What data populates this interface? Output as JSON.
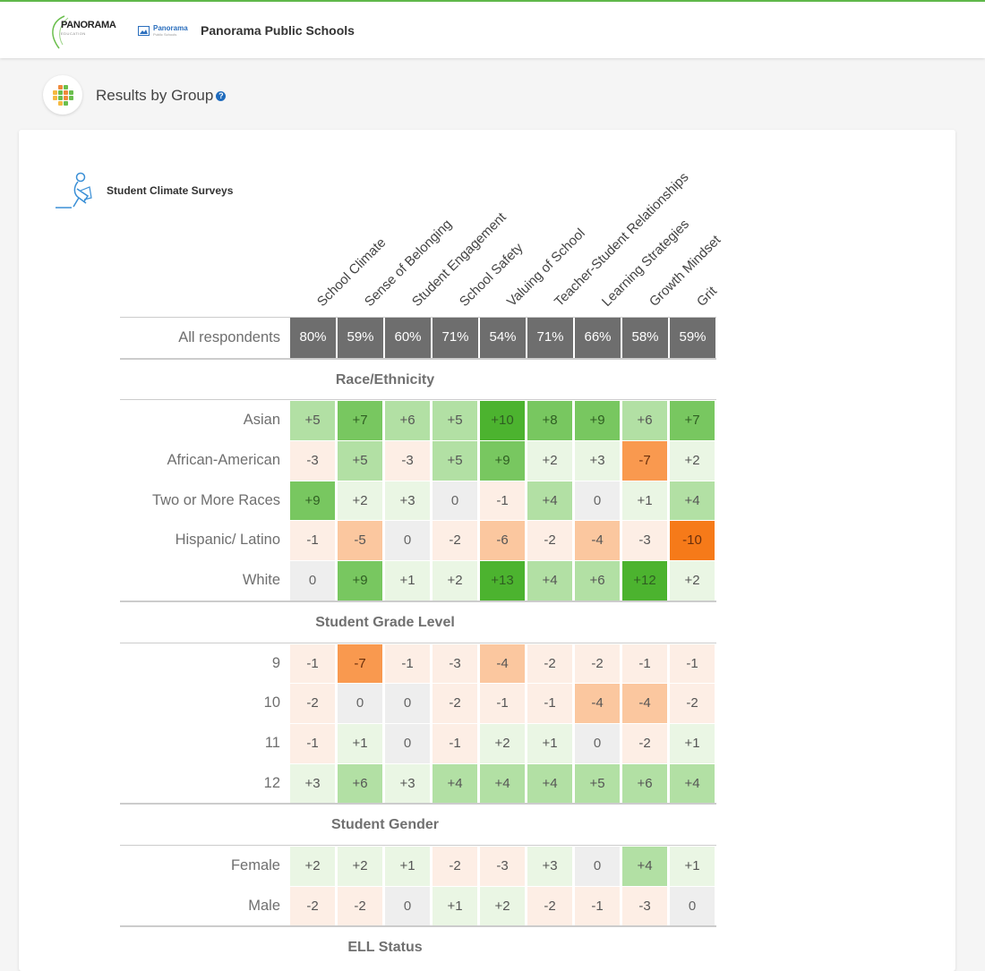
{
  "header": {
    "logo_text": "PANORAMA",
    "logo_subtext": "EDUCATION",
    "district_logo_line1": "Panorama",
    "district_logo_line2": "Public Schools",
    "district_name": "Panorama Public Schools"
  },
  "page": {
    "title": "Results by Group",
    "help_glyph": "?"
  },
  "survey": {
    "name": "Student Climate Surveys"
  },
  "columns": [
    "School Climate",
    "Sense of Belonging",
    "Student Engagement",
    "School Safety",
    "Valuing of School",
    "Teacher-Student Relationships",
    "Learning Strategies",
    "Growth Mindset",
    "Grit"
  ],
  "overall": {
    "label": "All respondents",
    "values": [
      "80%",
      "59%",
      "60%",
      "71%",
      "54%",
      "71%",
      "66%",
      "58%",
      "59%"
    ]
  },
  "groups": [
    {
      "name": "Race/Ethnicity",
      "rows": [
        {
          "label": "Asian",
          "values": [
            5,
            7,
            6,
            5,
            10,
            8,
            9,
            6,
            7
          ]
        },
        {
          "label": "African-American",
          "values": [
            -3,
            5,
            -3,
            5,
            9,
            2,
            3,
            -7,
            2
          ]
        },
        {
          "label": "Two or More Races",
          "values": [
            9,
            2,
            3,
            0,
            -1,
            4,
            0,
            1,
            4
          ]
        },
        {
          "label": "Hispanic/ Latino",
          "values": [
            -1,
            -5,
            0,
            -2,
            -6,
            -2,
            -4,
            -3,
            -10
          ]
        },
        {
          "label": "White",
          "values": [
            0,
            9,
            1,
            2,
            13,
            4,
            6,
            12,
            2
          ]
        }
      ]
    },
    {
      "name": "Student Grade Level",
      "rows": [
        {
          "label": "9",
          "values": [
            -1,
            -7,
            -1,
            -3,
            -4,
            -2,
            -2,
            -1,
            -1
          ]
        },
        {
          "label": "10",
          "values": [
            -2,
            0,
            0,
            -2,
            -1,
            -1,
            -4,
            -4,
            -2
          ]
        },
        {
          "label": "11",
          "values": [
            -1,
            1,
            0,
            -1,
            2,
            1,
            0,
            -2,
            1
          ]
        },
        {
          "label": "12",
          "values": [
            3,
            6,
            3,
            4,
            4,
            4,
            5,
            6,
            4
          ]
        }
      ]
    },
    {
      "name": "Student Gender",
      "rows": [
        {
          "label": "Female",
          "values": [
            2,
            2,
            1,
            -2,
            -3,
            3,
            0,
            4,
            1
          ]
        },
        {
          "label": "Male",
          "values": [
            -2,
            -2,
            0,
            1,
            2,
            -2,
            -1,
            -3,
            0
          ]
        }
      ]
    },
    {
      "name": "ELL Status",
      "rows": []
    }
  ],
  "colors": {
    "accent_green": "#5fb84a",
    "overall_cell": "#6e6e6e",
    "neutral": "#eeeeee",
    "pos_1": "#eaf6e4",
    "pos_2": "#b2e0a4",
    "pos_3": "#78c760",
    "pos_4": "#4cb32f",
    "neg_1": "#fdeee5",
    "neg_2": "#fbc79f",
    "neg_3": "#f9994f",
    "neg_4": "#f67a19"
  },
  "icons": {
    "logo": "panorama-logo-icon",
    "district": "image-icon",
    "section": "grid-dots-icon",
    "survey": "student-reading-icon",
    "help": "help-icon"
  }
}
